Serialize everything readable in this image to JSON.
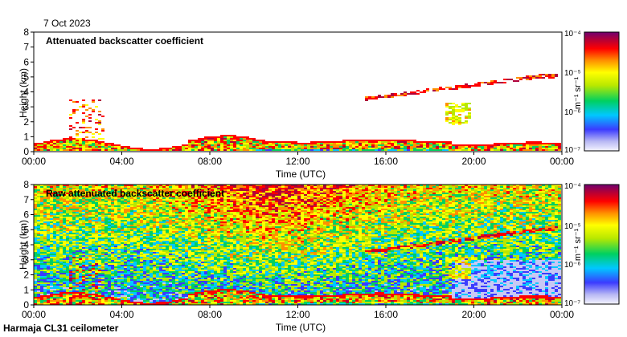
{
  "date_label": "7 Oct 2023",
  "station_label": "Harmaja CL31 ceilometer",
  "colorbar_unit": "m⁻¹ sr⁻¹",
  "colorbar_ticks": [
    "10⁻⁴",
    "10⁻⁵",
    "10⁻⁶",
    "10⁻⁷"
  ],
  "chart_data": [
    {
      "type": "heatmap",
      "title": "Attenuated backscatter coefficient",
      "xlabel": "Time (UTC)",
      "ylabel": "Height (km)",
      "x_ticks": [
        "00:00",
        "04:00",
        "08:00",
        "12:00",
        "16:00",
        "20:00",
        "00:00"
      ],
      "y_ticks": [
        "0",
        "1",
        "2",
        "3",
        "4",
        "5",
        "6",
        "7",
        "8"
      ],
      "xlim_hours": [
        0,
        24
      ],
      "ylim_km": [
        0,
        8
      ],
      "color_scale": "log",
      "clim": [
        1e-07,
        0.0001
      ],
      "features": [
        {
          "label": "boundary layer",
          "t_start": 0,
          "t_end": 24,
          "height_km": [
            0,
            1.0
          ]
        },
        {
          "label": "elevated cloud layer",
          "t_start": 15,
          "t_end": 23.7,
          "height_km": [
            3.6,
            5.2
          ]
        },
        {
          "label": "mid-level cloud patch",
          "t_start": 18.6,
          "t_end": 19.8,
          "height_km": [
            1.8,
            3.2
          ]
        }
      ]
    },
    {
      "type": "heatmap",
      "title": "Raw attenuated backscatter coefficient",
      "xlabel": "Time (UTC)",
      "ylabel": "Height (km)",
      "x_ticks": [
        "00:00",
        "04:00",
        "08:00",
        "12:00",
        "16:00",
        "20:00",
        "00:00"
      ],
      "y_ticks": [
        "0",
        "1",
        "2",
        "3",
        "4",
        "5",
        "6",
        "7",
        "8"
      ],
      "xlim_hours": [
        0,
        24
      ],
      "ylim_km": [
        0,
        8
      ],
      "color_scale": "log",
      "clim": [
        1e-07,
        0.0001
      ]
    }
  ]
}
